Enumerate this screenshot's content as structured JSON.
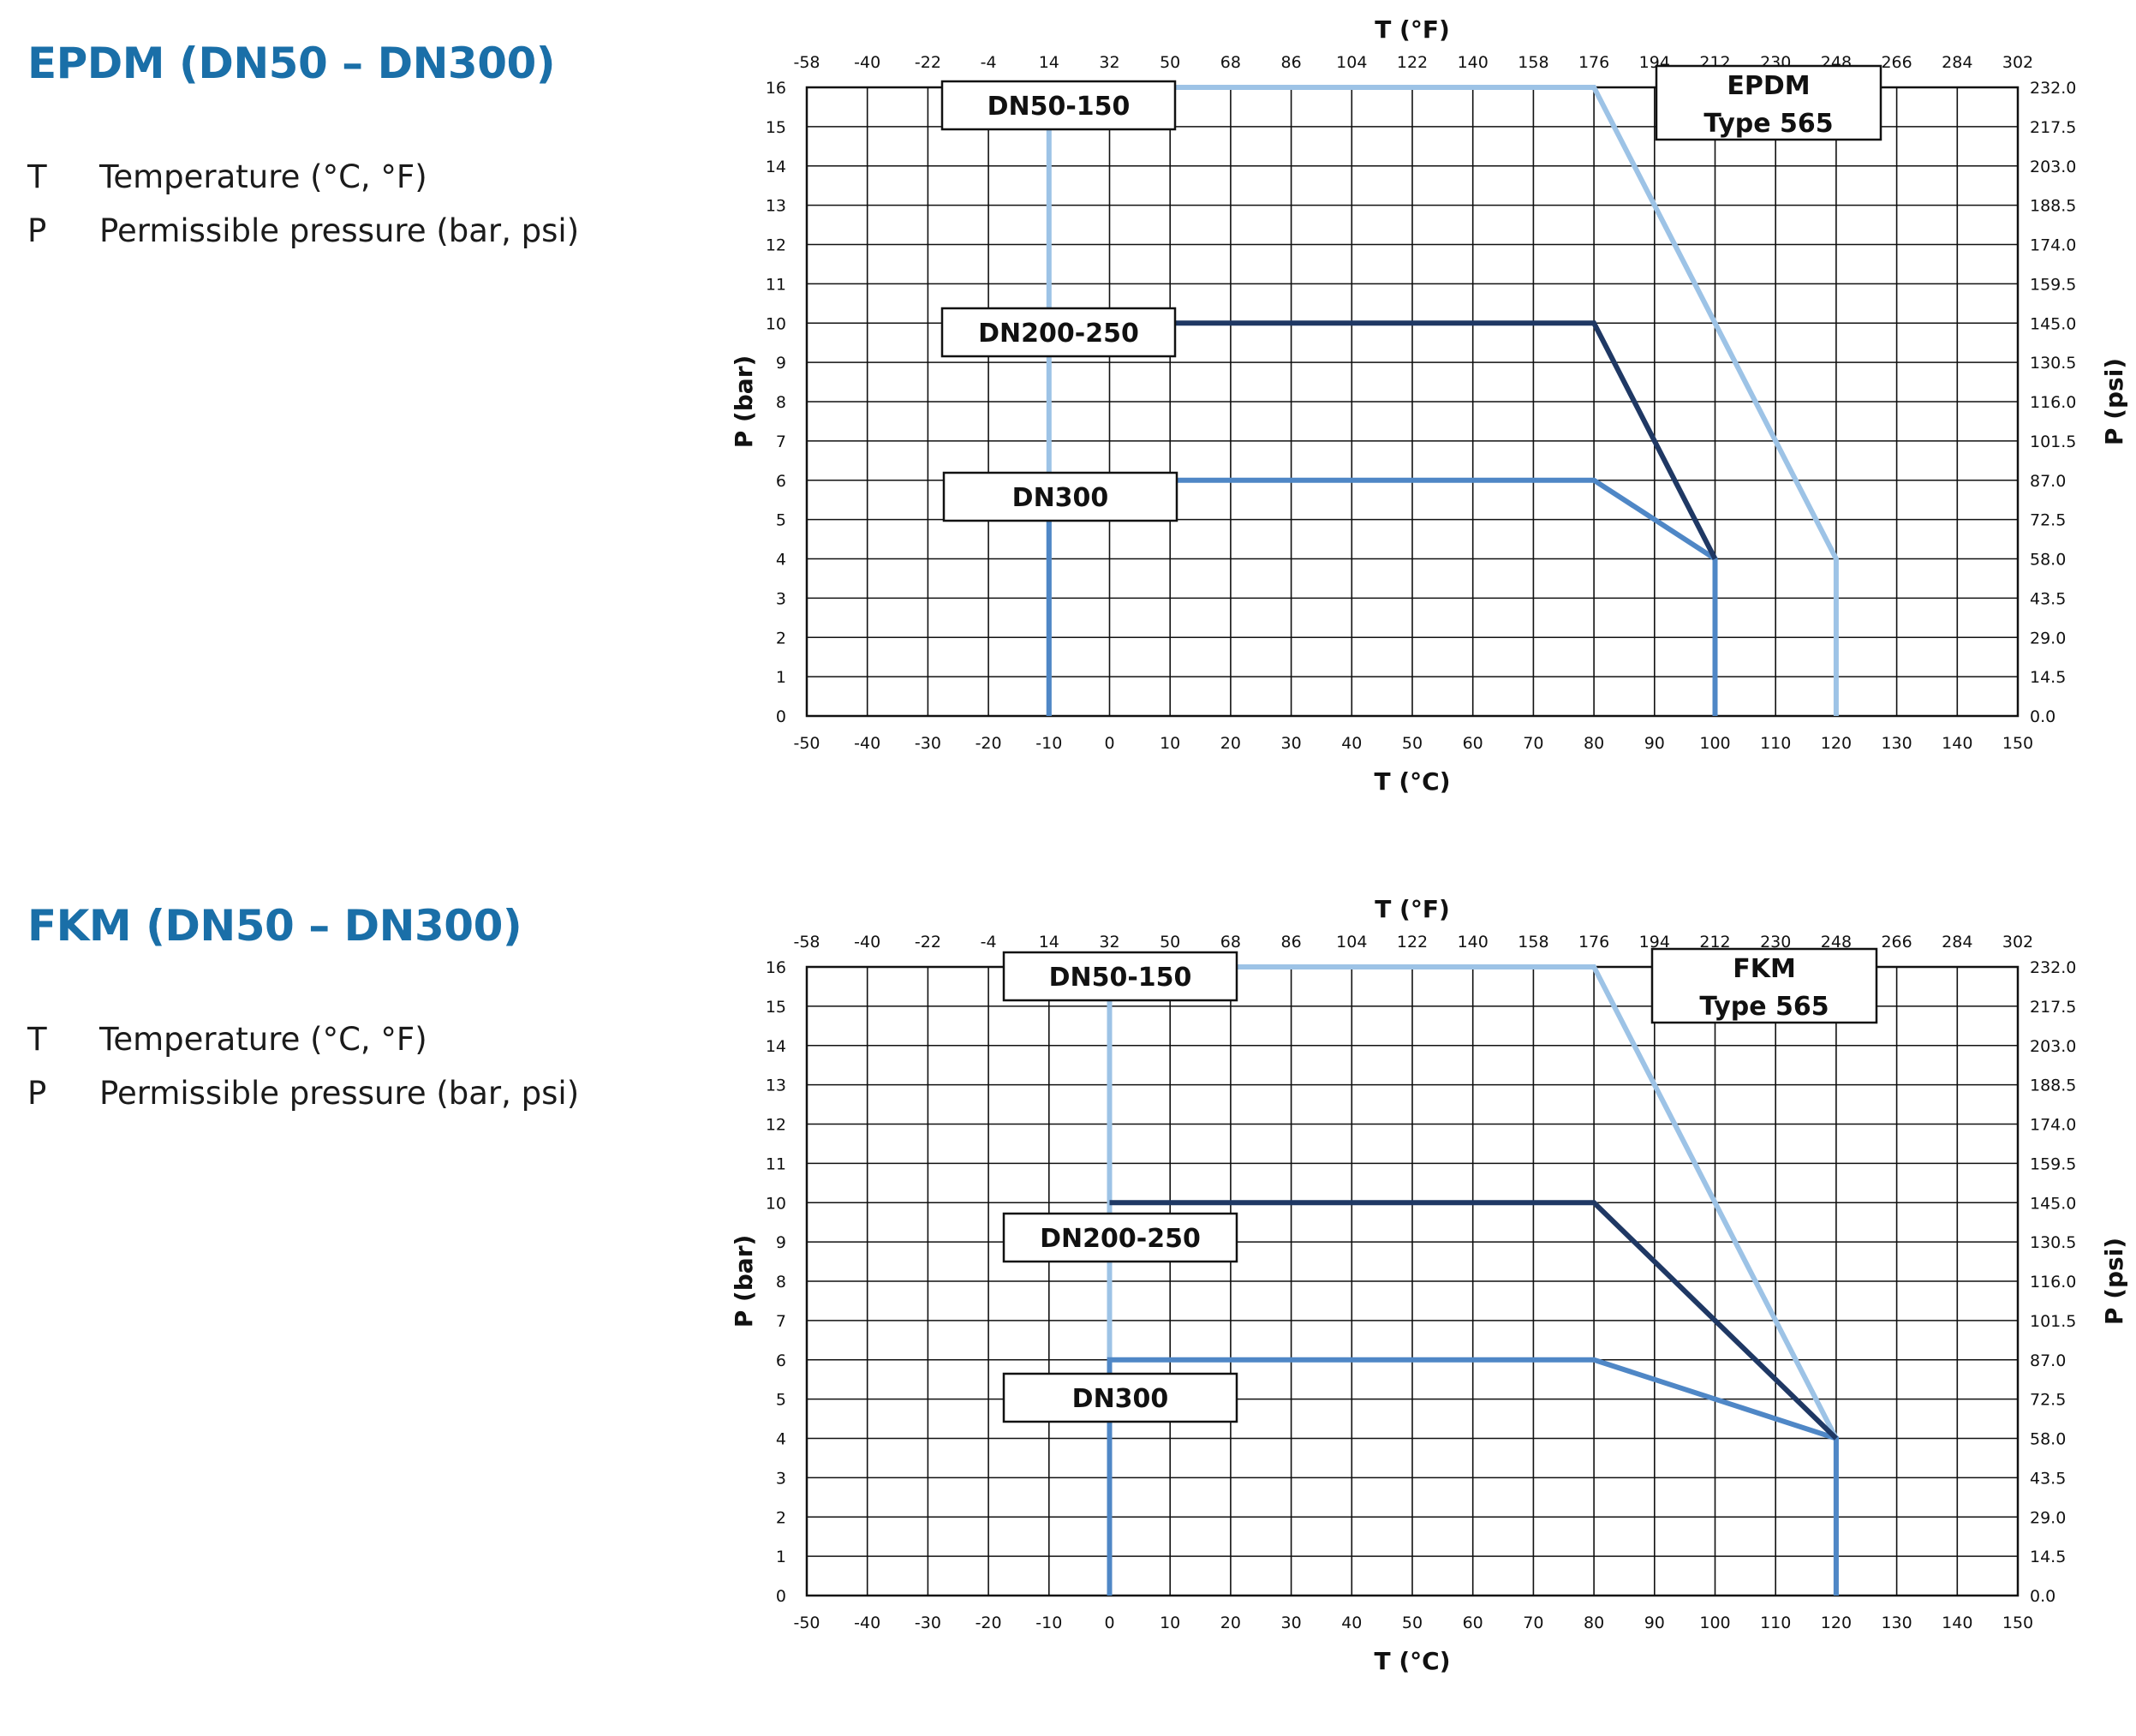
{
  "sections": [
    {
      "title": "EPDM (DN50 – DN300)",
      "legend": [
        {
          "symbol": "T",
          "text": "Temperature (°C, °F)"
        },
        {
          "symbol": "P",
          "text": "Permissible pressure (bar, psi)"
        }
      ]
    },
    {
      "title": "FKM (DN50 – DN300)",
      "legend": [
        {
          "symbol": "T",
          "text": "Temperature (°C, °F)"
        },
        {
          "symbol": "P",
          "text": "Permissible pressure (bar, psi)"
        }
      ]
    }
  ],
  "chart_data": [
    {
      "type": "line",
      "title": "",
      "xlabel": "T (°C)",
      "x2label": "T (°F)",
      "ylabel": "P (bar)",
      "y2label": "P (psi)",
      "xlim": [
        -50,
        150
      ],
      "ylim": [
        0,
        16
      ],
      "grid": true,
      "x_ticks": [
        "-50",
        "-40",
        "-30",
        "-20",
        "-10",
        "0",
        "10",
        "20",
        "30",
        "40",
        "50",
        "60",
        "70",
        "80",
        "90",
        "100",
        "110",
        "120",
        "130",
        "140",
        "150"
      ],
      "x2_ticks": [
        "-58",
        "-40",
        "-22",
        "-4",
        "14",
        "32",
        "50",
        "68",
        "86",
        "104",
        "122",
        "140",
        "158",
        "176",
        "194",
        "212",
        "230",
        "248",
        "266",
        "284",
        "302"
      ],
      "y_ticks": [
        "0",
        "1",
        "2",
        "3",
        "4",
        "5",
        "6",
        "7",
        "8",
        "9",
        "10",
        "11",
        "12",
        "13",
        "14",
        "15",
        "16"
      ],
      "y2_ticks": [
        "0.0",
        "14.5",
        "29.0",
        "43.5",
        "58.0",
        "72.5",
        "87.0",
        "101.5",
        "116.0",
        "130.5",
        "145.0",
        "159.5",
        "174.0",
        "188.5",
        "203.0",
        "217.5",
        "232.0"
      ],
      "info_box": [
        "EPDM",
        "Type 565"
      ],
      "series": [
        {
          "name": "DN50-150",
          "color": "#9dc3e6",
          "points": [
            [
              -10,
              0
            ],
            [
              -10,
              16
            ],
            [
              80,
              16
            ],
            [
              120,
              4
            ],
            [
              120,
              0
            ]
          ]
        },
        {
          "name": "DN200-250",
          "color": "#1f3864",
          "points": [
            [
              -10,
              10
            ],
            [
              80,
              10
            ],
            [
              100,
              4
            ]
          ]
        },
        {
          "name": "DN300",
          "color": "#4f87c6",
          "points": [
            [
              -10,
              0
            ],
            [
              -10,
              6
            ],
            [
              80,
              6
            ],
            [
              100,
              4
            ],
            [
              100,
              0
            ]
          ]
        }
      ]
    },
    {
      "type": "line",
      "title": "",
      "xlabel": "T (°C)",
      "x2label": "T (°F)",
      "ylabel": "P (bar)",
      "y2label": "P (psi)",
      "xlim": [
        -50,
        150
      ],
      "ylim": [
        0,
        16
      ],
      "grid": true,
      "x_ticks": [
        "-50",
        "-40",
        "-30",
        "-20",
        "-10",
        "0",
        "10",
        "20",
        "30",
        "40",
        "50",
        "60",
        "70",
        "80",
        "90",
        "100",
        "110",
        "120",
        "130",
        "140",
        "150"
      ],
      "x2_ticks": [
        "-58",
        "-40",
        "-22",
        "-4",
        "14",
        "32",
        "50",
        "68",
        "86",
        "104",
        "122",
        "140",
        "158",
        "176",
        "194",
        "212",
        "230",
        "248",
        "266",
        "284",
        "302"
      ],
      "y_ticks": [
        "0",
        "1",
        "2",
        "3",
        "4",
        "5",
        "6",
        "7",
        "8",
        "9",
        "10",
        "11",
        "12",
        "13",
        "14",
        "15",
        "16"
      ],
      "y2_ticks": [
        "0.0",
        "14.5",
        "29.0",
        "43.5",
        "58.0",
        "72.5",
        "87.0",
        "101.5",
        "116.0",
        "130.5",
        "145.0",
        "159.5",
        "174.0",
        "188.5",
        "203.0",
        "217.5",
        "232.0"
      ],
      "info_box": [
        "FKM",
        "Type 565"
      ],
      "series": [
        {
          "name": "DN50-150",
          "color": "#9dc3e6",
          "points": [
            [
              0,
              0
            ],
            [
              0,
              16
            ],
            [
              80,
              16
            ],
            [
              120,
              4
            ],
            [
              120,
              0
            ]
          ]
        },
        {
          "name": "DN200-250",
          "color": "#1f3864",
          "points": [
            [
              0,
              10
            ],
            [
              80,
              10
            ],
            [
              120,
              4
            ]
          ]
        },
        {
          "name": "DN300",
          "color": "#4f87c6",
          "points": [
            [
              0,
              0
            ],
            [
              0,
              6
            ],
            [
              80,
              6
            ],
            [
              120,
              4
            ],
            [
              120,
              0
            ]
          ]
        }
      ]
    }
  ]
}
